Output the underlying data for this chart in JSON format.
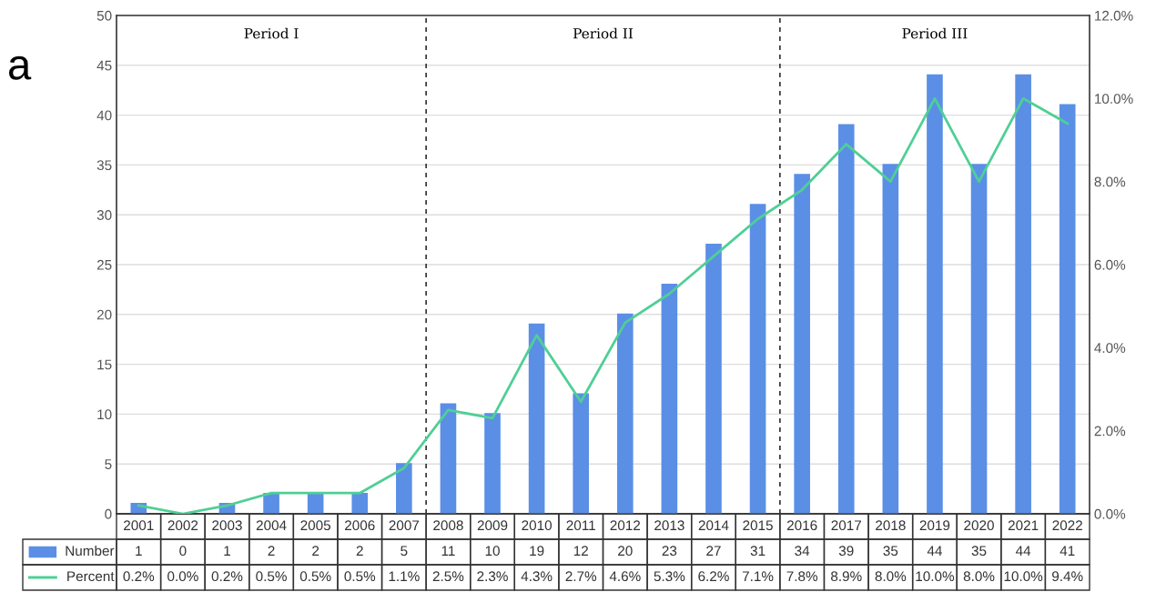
{
  "chart_data": {
    "type": "bar",
    "categories": [
      "2001",
      "2002",
      "2003",
      "2004",
      "2005",
      "2006",
      "2007",
      "2008",
      "2009",
      "2010",
      "2011",
      "2012",
      "2013",
      "2014",
      "2015",
      "2016",
      "2017",
      "2018",
      "2019",
      "2020",
      "2021",
      "2022"
    ],
    "series": [
      {
        "name": "Number",
        "color": "#5b8fe6",
        "values": [
          1,
          0,
          1,
          2,
          2,
          2,
          5,
          11,
          10,
          19,
          12,
          20,
          23,
          27,
          31,
          34,
          39,
          35,
          44,
          35,
          44,
          41
        ],
        "data_labels": true
      },
      {
        "name": "Percent",
        "type": "line",
        "axis": "y2",
        "color": "#4fcf95",
        "values": [
          0.2,
          0.0,
          0.2,
          0.5,
          0.5,
          0.5,
          1.1,
          2.5,
          2.3,
          4.3,
          2.7,
          4.6,
          5.3,
          6.2,
          7.1,
          7.8,
          8.9,
          8.0,
          10.0,
          8.0,
          10.0,
          9.4
        ],
        "value_labels": [
          "0.2%",
          "0.0%",
          "0.2%",
          "0.5%",
          "0.5%",
          "0.5%",
          "1.1%",
          "2.5%",
          "2.3%",
          "4.3%",
          "2.7%",
          "4.6%",
          "5.3%",
          "6.2%",
          "7.1%",
          "7.8%",
          "8.9%",
          "8.0%",
          "10.0%",
          "8.0%",
          "10.0%",
          "9.4%"
        ]
      }
    ],
    "ylim": [
      0,
      50
    ],
    "yticks": [
      0,
      5,
      10,
      15,
      20,
      25,
      30,
      35,
      40,
      45,
      50
    ],
    "y2lim": [
      0,
      12
    ],
    "y2ticks": [
      {
        "value": 0,
        "label": "0.0%"
      },
      {
        "value": 2,
        "label": "2.0%"
      },
      {
        "value": 4,
        "label": "4.0%"
      },
      {
        "value": 6,
        "label": "6.0%"
      },
      {
        "value": 8,
        "label": "8.0%"
      },
      {
        "value": 10,
        "label": "10.0%"
      },
      {
        "value": 12,
        "label": "12.0%"
      }
    ],
    "grid": "y",
    "legend": "bottom left",
    "annotations": [
      "a",
      "Period I",
      "Period II",
      "Period III"
    ]
  }
}
